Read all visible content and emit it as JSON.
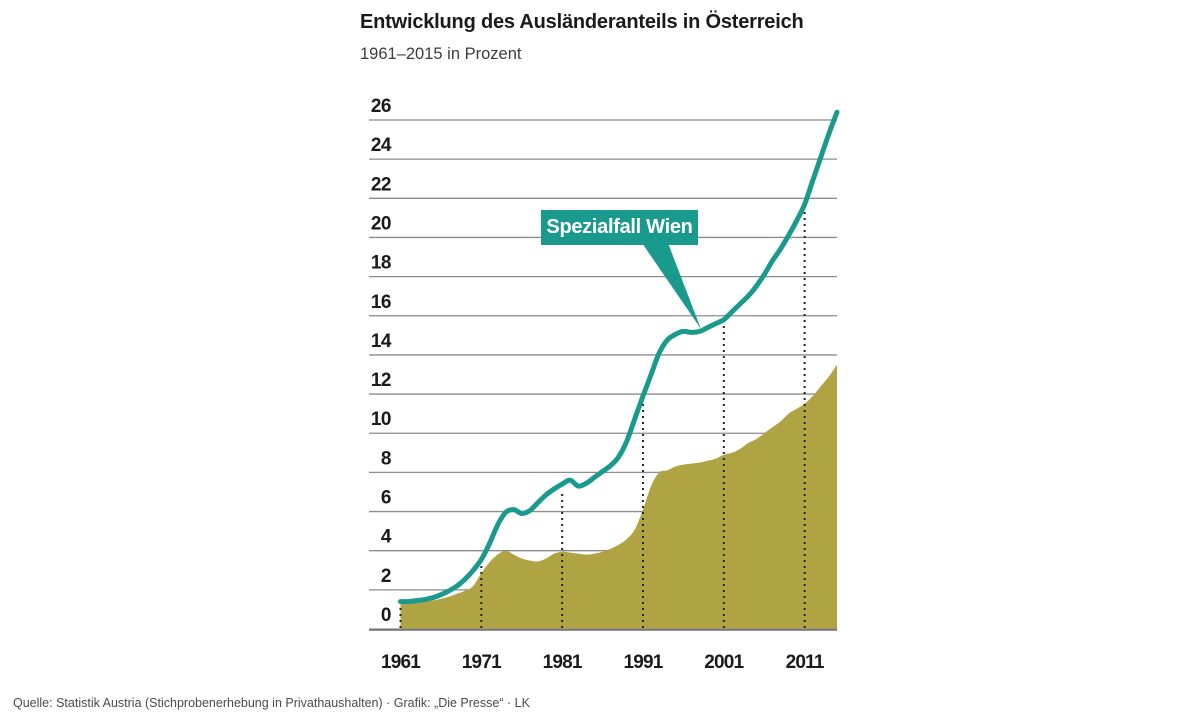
{
  "header": {
    "title": "Entwicklung des Ausländeranteils in Österreich",
    "subtitle": "1961–2015 in Prozent"
  },
  "footer": {
    "source": "Quelle: Statistik Austria (Stichprobenerhebung in Privathaushalten) · Grafik: „Die Presse“ · LK"
  },
  "colors": {
    "accent_teal": "#199a8c",
    "area_olive": "#b0a344",
    "grid": "#8c8c8c",
    "baseline": "#6f6f6f",
    "guide_dots": "#262626",
    "tick_text": "#1a1a1a",
    "callout_text": "#ffffff"
  },
  "chart_data": {
    "type": "line",
    "title": "Entwicklung des Ausländeranteils in Österreich",
    "subtitle": "1961–2015 in Prozent",
    "xlabel": "",
    "ylabel": "Prozent",
    "ylim": [
      0,
      26
    ],
    "yticks": [
      0,
      2,
      4,
      6,
      8,
      10,
      12,
      14,
      16,
      18,
      20,
      22,
      24,
      26
    ],
    "xticks": [
      1961,
      1971,
      1981,
      1991,
      2001,
      2011
    ],
    "grid": "horizontal",
    "dotted_guides_at_xticks": true,
    "legend_position": "none",
    "annotation": {
      "text": "Spezialfall Wien",
      "points_to_series": "Wien"
    },
    "x_years": [
      1961,
      1962,
      1963,
      1964,
      1965,
      1966,
      1967,
      1968,
      1969,
      1970,
      1971,
      1972,
      1973,
      1974,
      1975,
      1976,
      1977,
      1978,
      1979,
      1980,
      1981,
      1982,
      1983,
      1984,
      1985,
      1986,
      1987,
      1988,
      1989,
      1990,
      1991,
      1992,
      1993,
      1994,
      1995,
      1996,
      1997,
      1998,
      1999,
      2000,
      2001,
      2002,
      2003,
      2004,
      2005,
      2006,
      2007,
      2008,
      2009,
      2010,
      2011,
      2012,
      2013,
      2014,
      2015
    ],
    "series": [
      {
        "name": "Wien",
        "style": "line",
        "color_key": "accent_teal",
        "values": [
          1.4,
          1.4,
          1.45,
          1.5,
          1.6,
          1.75,
          1.95,
          2.2,
          2.55,
          3.0,
          3.55,
          4.35,
          5.3,
          5.95,
          6.1,
          5.9,
          6.05,
          6.45,
          6.85,
          7.15,
          7.4,
          7.6,
          7.3,
          7.45,
          7.75,
          8.05,
          8.35,
          8.8,
          9.6,
          10.75,
          11.9,
          13.0,
          14.1,
          14.75,
          15.05,
          15.2,
          15.15,
          15.2,
          15.4,
          15.6,
          15.8,
          16.2,
          16.6,
          17.0,
          17.5,
          18.1,
          18.8,
          19.4,
          20.1,
          20.85,
          21.7,
          22.9,
          24.1,
          25.3,
          26.4
        ]
      },
      {
        "name": "Österreich",
        "style": "area",
        "color_key": "area_olive",
        "values": [
          1.3,
          1.3,
          1.35,
          1.4,
          1.45,
          1.55,
          1.65,
          1.8,
          1.95,
          2.2,
          2.85,
          3.4,
          3.8,
          4.0,
          3.8,
          3.6,
          3.5,
          3.45,
          3.6,
          3.85,
          3.95,
          3.9,
          3.85,
          3.8,
          3.85,
          3.95,
          4.1,
          4.3,
          4.6,
          5.1,
          6.1,
          7.3,
          8.0,
          8.1,
          8.3,
          8.4,
          8.45,
          8.5,
          8.6,
          8.7,
          8.9,
          9.0,
          9.2,
          9.5,
          9.7,
          10.0,
          10.3,
          10.6,
          11.0,
          11.25,
          11.5,
          11.9,
          12.4,
          12.9,
          13.5
        ]
      }
    ]
  }
}
